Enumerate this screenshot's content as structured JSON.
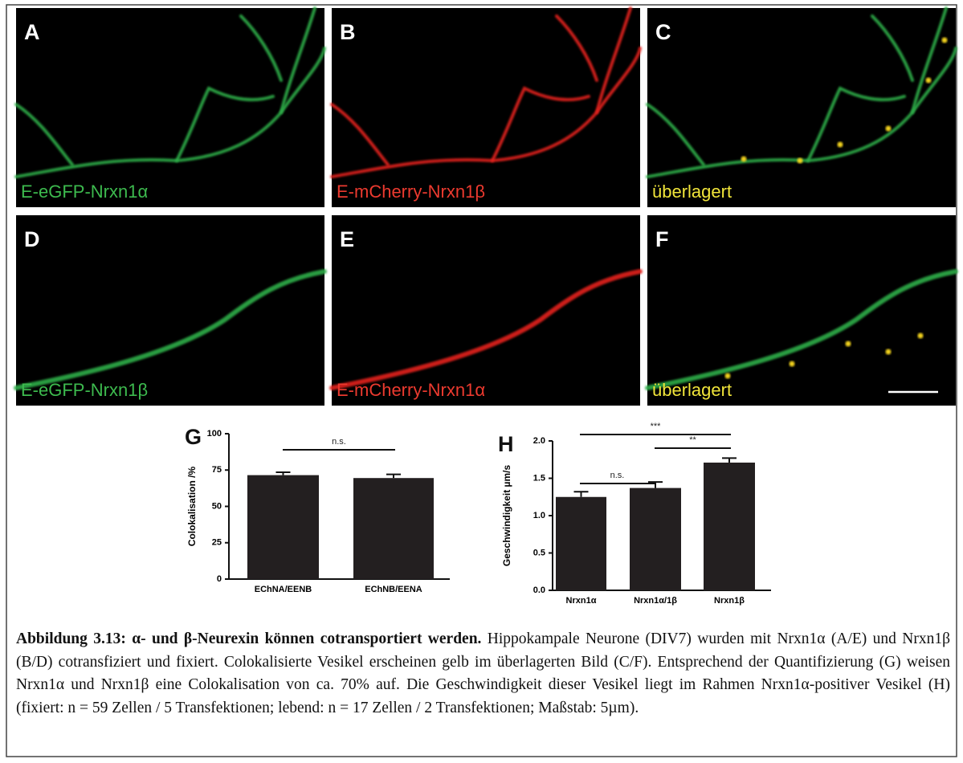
{
  "panels": [
    {
      "letter": "A",
      "label": "E-eGFP-Nrxn1α"
    },
    {
      "letter": "B",
      "label": "E-mCherry-Nrxn1β"
    },
    {
      "letter": "C",
      "label": "überlagert"
    },
    {
      "letter": "D",
      "label": "E-eGFP-Nrxn1β"
    },
    {
      "letter": "E",
      "label": "E-mCherry-Nrxn1α"
    },
    {
      "letter": "F",
      "label": "überlagert"
    }
  ],
  "chart_data": [
    {
      "type": "bar",
      "panel": "G",
      "y_label": "Colokalisation /%",
      "categories": [
        "EChNA/EENB",
        "EChNB/EENA"
      ],
      "values": [
        71.5,
        69.5
      ],
      "errors": [
        2,
        2.5
      ],
      "color": "#231f20",
      "ylim": [
        0,
        100
      ],
      "yticks": [
        0,
        25,
        50,
        75,
        100
      ],
      "annotations": [
        "n.s."
      ]
    },
    {
      "type": "bar",
      "panel": "H",
      "y_label": "Geschwindigkeit µm/s",
      "categories": [
        "Nrxn1α",
        "Nrxn1α/1β",
        "Nrxn1β"
      ],
      "values": [
        1.25,
        1.37,
        1.71
      ],
      "errors": [
        0.07,
        0.08,
        0.06
      ],
      "color": "#231f20",
      "ylim": [
        0,
        2
      ],
      "yticks": [
        {
          "value": 0,
          "label": "0.0"
        },
        0.5,
        {
          "value": 1,
          "label": "1.0"
        },
        1.5,
        {
          "value": 2,
          "label": "2.0"
        }
      ],
      "annotations": [
        "***",
        "**",
        "n.s."
      ]
    }
  ],
  "caption": {
    "title": "Abbildung 3.13: α- und β-Neurexin können cotransportiert werden.",
    "text": "Hippokampale Neurone (DIV7) wurden mit Nrxn1α (A/E) und Nrxn1β (B/D) cotransfiziert und fixiert. Colokalisierte Vesikel erscheinen gelb im überlagerten Bild (C/F). Entsprechend der Quantifizierung (G) weisen Nrxn1α und Nrxn1β eine Colokalisation von ca. 70% auf. Die Geschwindigkeit dieser Vesikel liegt im Rahmen Nrxn1α-positiver Vesikel (H) (fixiert: n = 59 Zellen / 5 Transfektionen; lebend: n = 17 Zellen / 2 Transfektionen; Maßstab: 5µm)."
  }
}
